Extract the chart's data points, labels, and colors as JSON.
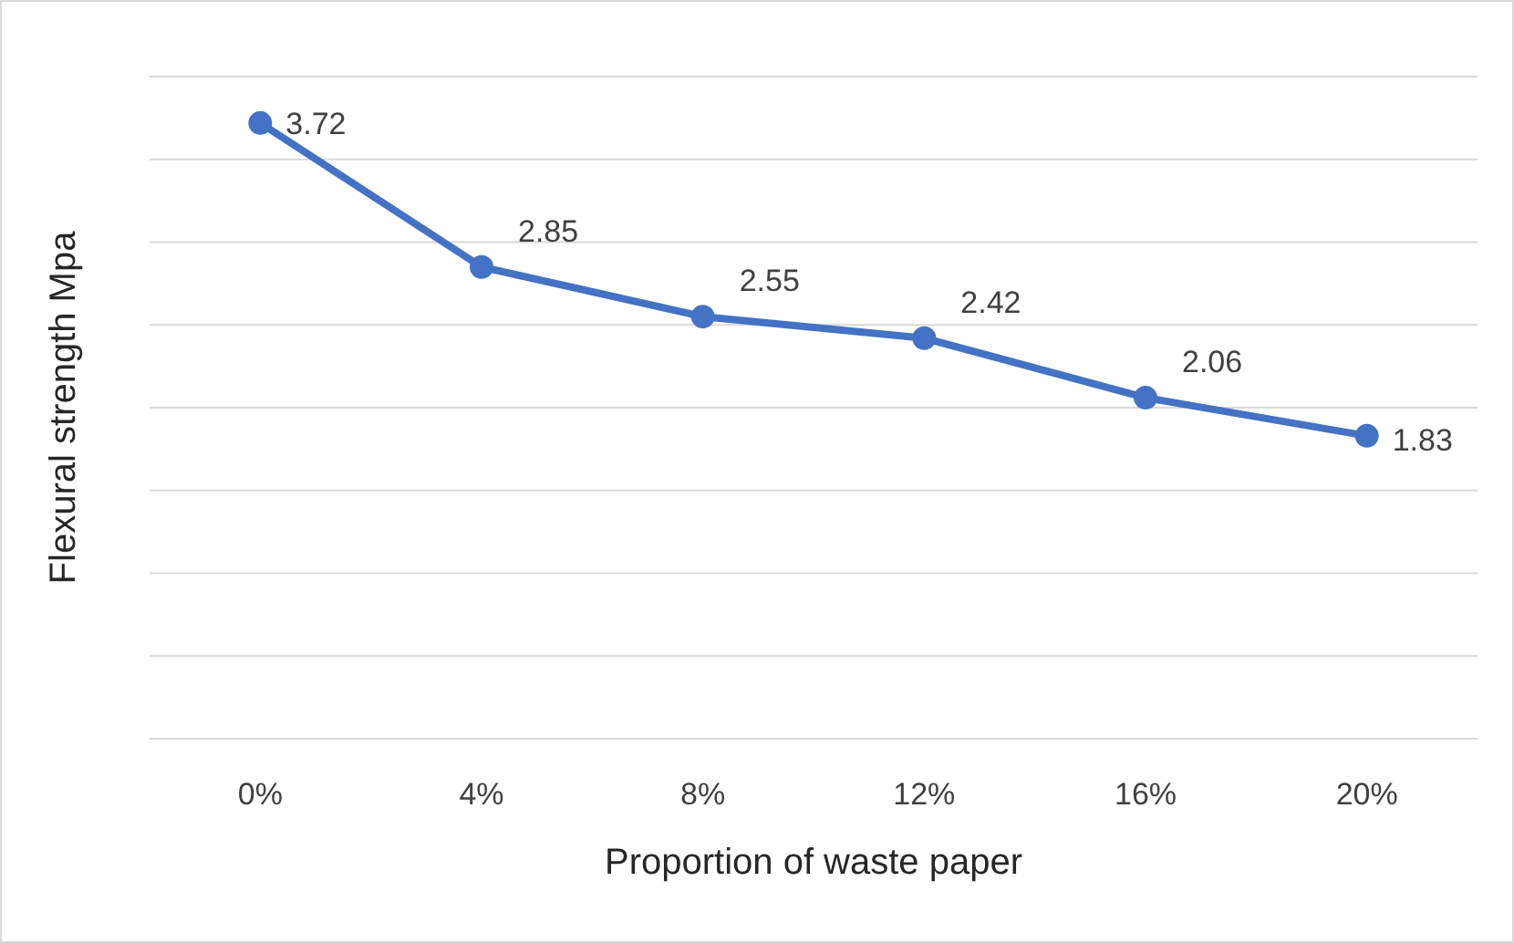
{
  "chart_data": {
    "type": "line",
    "xlabel": "Proportion of waste paper",
    "ylabel": "Flexural strength Mpa",
    "categories": [
      "0%",
      "4%",
      "8%",
      "12%",
      "16%",
      "20%"
    ],
    "series": [
      {
        "color": "#4472c4",
        "values": [
          3.72,
          2.85,
          2.55,
          2.42,
          2.06,
          1.83
        ]
      }
    ],
    "ylim": [
      0,
      4
    ],
    "yticks": [
      {
        "value": 0,
        "label": null
      },
      {
        "value": 0.5,
        "label": null
      },
      {
        "value": 1,
        "label": null
      },
      {
        "value": 1.5,
        "label": null
      },
      {
        "value": 2,
        "label": null
      },
      {
        "value": 2.5,
        "label": null
      },
      {
        "value": 3,
        "label": null
      },
      {
        "value": 3.5,
        "label": null
      },
      {
        "value": 4,
        "label": null
      }
    ],
    "tick_labels": "x",
    "grid": "y",
    "marker": "circle",
    "line_style": "solid",
    "data_labels": true
  }
}
